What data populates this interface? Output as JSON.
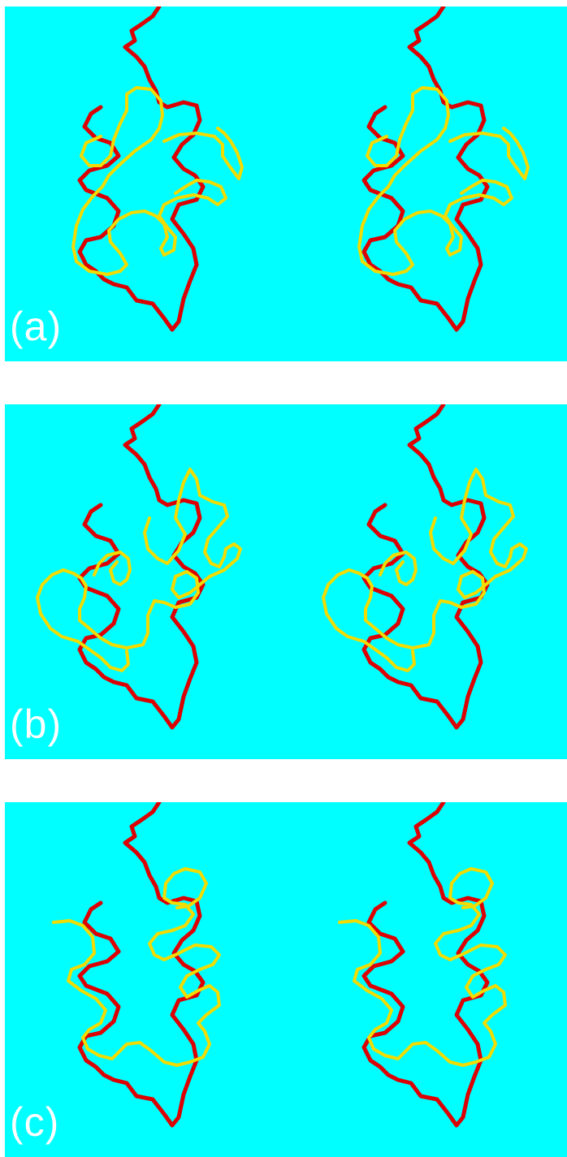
{
  "colors": {
    "background": "#00ffff",
    "reference_backbone": "#dd0000",
    "model_backbone": "#f2dc00",
    "label": "#ffffff"
  },
  "panels": [
    {
      "label": "(a)"
    },
    {
      "label": "(b)"
    },
    {
      "label": "(c)"
    }
  ]
}
